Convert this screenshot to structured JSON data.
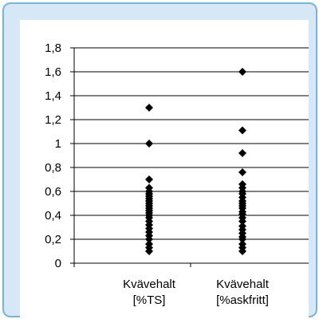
{
  "chart_data": {
    "type": "scatter",
    "title": "",
    "xlabel": "",
    "ylabel": "",
    "categories": [
      [
        "Kvävehalt",
        "[%TS]"
      ],
      [
        "Kvävehalt",
        "[%askfritt]"
      ]
    ],
    "ylim": [
      0,
      1.8
    ],
    "yticks": [
      "0",
      "0,2",
      "0,4",
      "0,6",
      "0,8",
      "1",
      "1,2",
      "1,4",
      "1,6",
      "1,8"
    ],
    "grid": "horizontal",
    "legend": "none",
    "marker": "diamond",
    "series": [
      {
        "category": 0,
        "values": [
          0.1,
          0.13,
          0.16,
          0.2,
          0.23,
          0.26,
          0.29,
          0.32,
          0.35,
          0.38,
          0.4,
          0.42,
          0.44,
          0.46,
          0.48,
          0.5,
          0.52,
          0.54,
          0.56,
          0.58,
          0.6,
          0.63,
          0.7,
          1.0,
          1.3
        ]
      },
      {
        "category": 1,
        "values": [
          0.1,
          0.13,
          0.16,
          0.2,
          0.22,
          0.25,
          0.28,
          0.31,
          0.35,
          0.38,
          0.41,
          0.43,
          0.46,
          0.48,
          0.5,
          0.52,
          0.55,
          0.58,
          0.6,
          0.63,
          0.66,
          0.76,
          0.92,
          1.11,
          1.6
        ]
      }
    ],
    "colors": {
      "marker": "#000000",
      "gridline": "#000000",
      "frame_border": "#78b4d8",
      "frame_fill": "#d6e8f5",
      "plot_background": "#ffffff"
    }
  }
}
